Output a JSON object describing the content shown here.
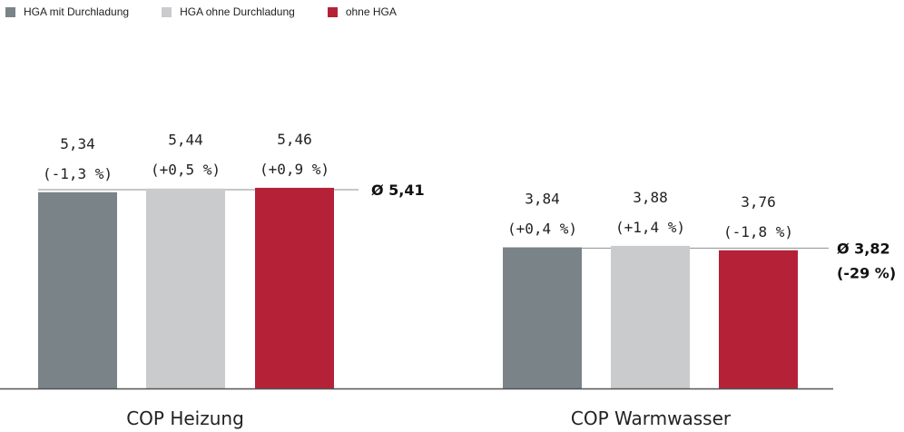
{
  "chart_data": {
    "type": "bar",
    "categories": [
      "COP Heizung",
      "COP Warmwasser"
    ],
    "series": [
      {
        "name": "HGA mit Durchladung",
        "color": "#7a8388",
        "values": [
          5.34,
          3.84
        ],
        "value_labels": [
          "5,34",
          "3,84"
        ],
        "change_labels": [
          "(-1,3 %)",
          "(+0,4 %)"
        ]
      },
      {
        "name": "HGA ohne Durchladung",
        "color": "#cacbcd",
        "values": [
          5.44,
          3.88
        ],
        "value_labels": [
          "5,44",
          "3,88"
        ],
        "change_labels": [
          "(+0,5 %)",
          "(+1,4 %)"
        ]
      },
      {
        "name": "ohne HGA",
        "color": "#b52237",
        "values": [
          5.46,
          3.76
        ],
        "value_labels": [
          "5,46",
          "3,76"
        ],
        "change_labels": [
          "(+0,9 %)",
          "(-1,8 %)"
        ]
      }
    ],
    "averages": [
      {
        "value": 5.41,
        "label": "Ø 5,41",
        "note": ""
      },
      {
        "value": 3.82,
        "label": "Ø 3,82",
        "note": "(-29 %)"
      }
    ],
    "ylim": [
      0,
      7.78
    ],
    "legend_position": "top-left",
    "grid": false
  }
}
